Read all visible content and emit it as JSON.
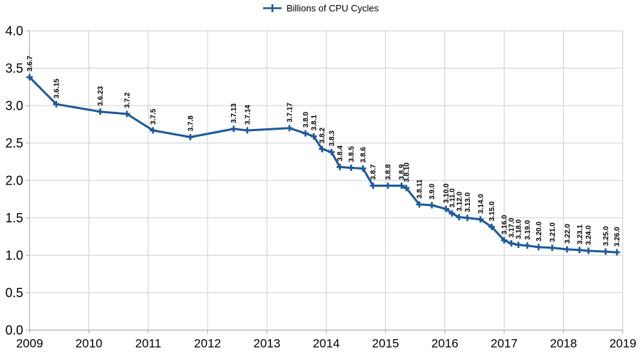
{
  "chart_data": {
    "type": "line",
    "legend": {
      "position": "top",
      "entries": [
        "Billions of CPU Cycles"
      ]
    },
    "colors": {
      "line": "#1c5a9c",
      "grid": "#cfcfcf",
      "axis": "#ababab",
      "text": "#000000",
      "background": "#ffffff"
    },
    "x_axis": {
      "min": 2009,
      "max": 2019,
      "ticks": [
        "2009",
        "2010",
        "2011",
        "2012",
        "2013",
        "2014",
        "2015",
        "2016",
        "2017",
        "2018",
        "2019"
      ]
    },
    "y_axis": {
      "min": 0,
      "max": 4,
      "step": 0.5,
      "ticks": [
        "0.0",
        "0.5",
        "1.0",
        "1.5",
        "2.0",
        "2.5",
        "3.0",
        "3.5",
        "4.0"
      ]
    },
    "grid": true,
    "series": [
      {
        "name": "Billions of CPU Cycles",
        "marker": "plus",
        "points": [
          {
            "label": "3.6.7",
            "x": 2009.0,
            "y": 3.38
          },
          {
            "label": "3.6.15",
            "x": 2009.45,
            "y": 3.02
          },
          {
            "label": "3.6.23",
            "x": 2010.19,
            "y": 2.92
          },
          {
            "label": "3.7.2",
            "x": 2010.64,
            "y": 2.89
          },
          {
            "label": "3.7.5",
            "x": 2011.08,
            "y": 2.67
          },
          {
            "label": "3.7.8",
            "x": 2011.71,
            "y": 2.58
          },
          {
            "label": "3.7.13",
            "x": 2012.44,
            "y": 2.69
          },
          {
            "label": "3.7.14",
            "x": 2012.67,
            "y": 2.67
          },
          {
            "label": "3.7.17",
            "x": 2013.38,
            "y": 2.7
          },
          {
            "label": "3.8.0",
            "x": 2013.65,
            "y": 2.63
          },
          {
            "label": "3.8.1",
            "x": 2013.79,
            "y": 2.59
          },
          {
            "label": "3.8.2",
            "x": 2013.93,
            "y": 2.42
          },
          {
            "label": "3.8.3",
            "x": 2014.09,
            "y": 2.38
          },
          {
            "label": "3.8.4",
            "x": 2014.23,
            "y": 2.18
          },
          {
            "label": "3.8.5",
            "x": 2014.42,
            "y": 2.17
          },
          {
            "label": "3.8.6",
            "x": 2014.62,
            "y": 2.16
          },
          {
            "label": "3.8.7",
            "x": 2014.79,
            "y": 1.93
          },
          {
            "label": "3.8.8",
            "x": 2015.04,
            "y": 1.93
          },
          {
            "label": "3.8.9",
            "x": 2015.27,
            "y": 1.93
          },
          {
            "label": "3.8.10",
            "x": 2015.35,
            "y": 1.9
          },
          {
            "label": "3.8.11",
            "x": 2015.57,
            "y": 1.68
          },
          {
            "label": "3.9.0",
            "x": 2015.78,
            "y": 1.67
          },
          {
            "label": "3.10.0",
            "x": 2016.02,
            "y": 1.62
          },
          {
            "label": "3.11.0",
            "x": 2016.12,
            "y": 1.56
          },
          {
            "label": "3.12.0",
            "x": 2016.24,
            "y": 1.51
          },
          {
            "label": "3.13.0",
            "x": 2016.38,
            "y": 1.5
          },
          {
            "label": "3.14.0",
            "x": 2016.6,
            "y": 1.48
          },
          {
            "label": "3.15.0",
            "x": 2016.79,
            "y": 1.38
          },
          {
            "label": "3.16.0",
            "x": 2017.0,
            "y": 1.2
          },
          {
            "label": "3.17.0",
            "x": 2017.12,
            "y": 1.16
          },
          {
            "label": "3.18.0",
            "x": 2017.24,
            "y": 1.14
          },
          {
            "label": "3.19.0",
            "x": 2017.39,
            "y": 1.13
          },
          {
            "label": "3.20.0",
            "x": 2017.58,
            "y": 1.11
          },
          {
            "label": "3.21.0",
            "x": 2017.81,
            "y": 1.1
          },
          {
            "label": "3.22.0",
            "x": 2018.06,
            "y": 1.08
          },
          {
            "label": "3.23.1",
            "x": 2018.27,
            "y": 1.07
          },
          {
            "label": "3.24.0",
            "x": 2018.42,
            "y": 1.06
          },
          {
            "label": "3.25.0",
            "x": 2018.71,
            "y": 1.05
          },
          {
            "label": "3.26.0",
            "x": 2018.9,
            "y": 1.04
          }
        ]
      }
    ]
  }
}
